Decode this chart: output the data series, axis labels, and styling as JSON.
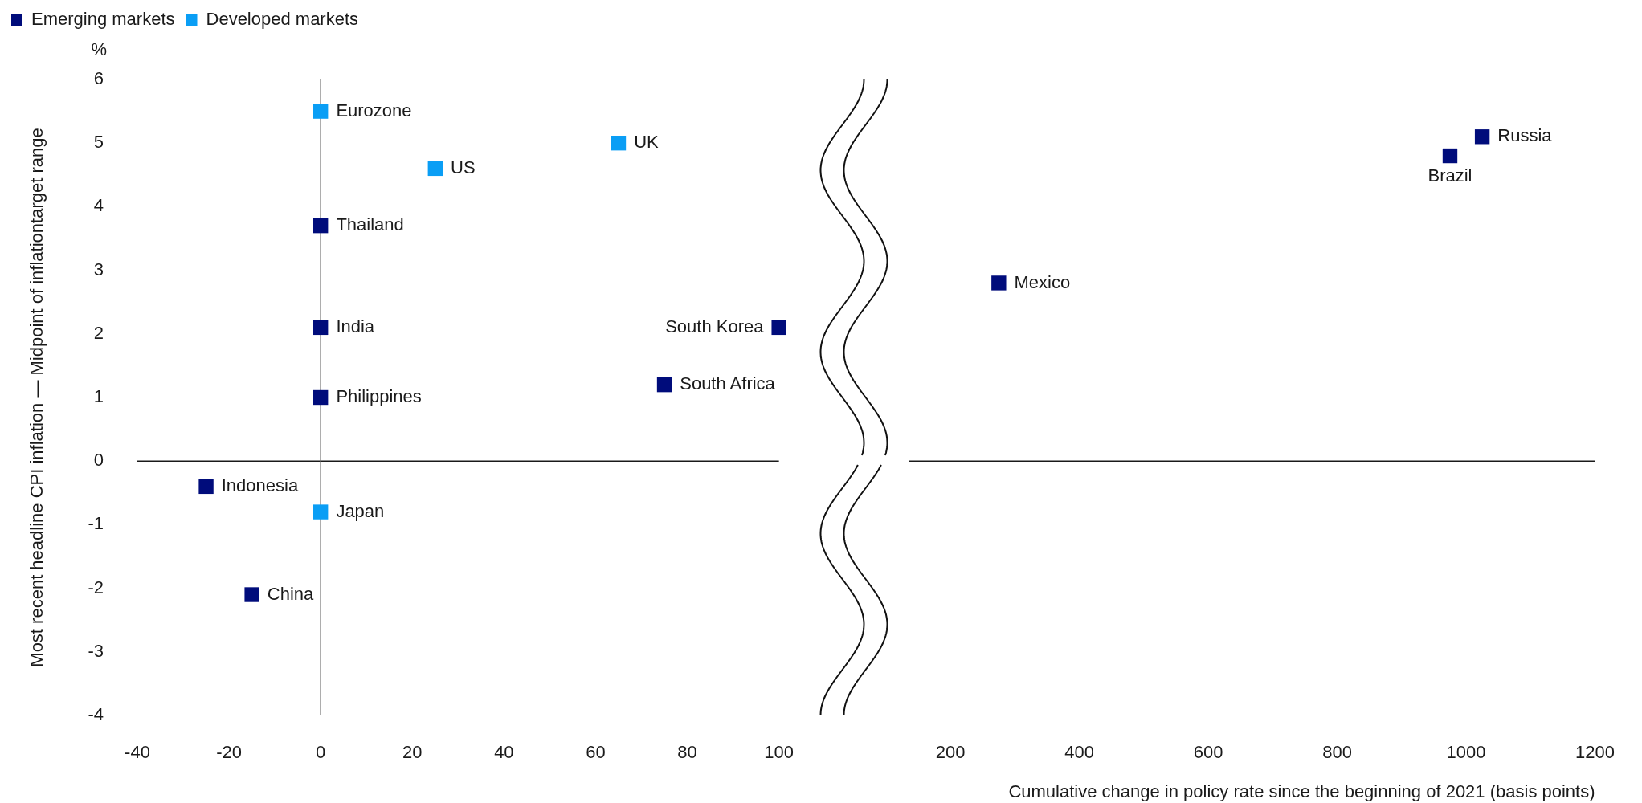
{
  "chart_data": [
    {
      "type": "scatter",
      "ylabel": "Most recent headline CPI inflation — Midpoint of inflationtarget range",
      "legend": "top left",
      "marker": "square",
      "xlim": [
        -40,
        100
      ],
      "xticks": [
        -40,
        -20,
        0,
        20,
        40,
        60,
        80,
        100
      ],
      "ylim": [
        -4,
        6
      ],
      "yticks": [
        -4,
        -3,
        -2,
        -1,
        0,
        1,
        2,
        3,
        4,
        5,
        6
      ],
      "series": [
        {
          "name": "Emerging markets",
          "color": "#000c7b",
          "x": [
            0,
            0,
            0,
            -25,
            -15,
            100,
            75
          ],
          "values": [
            3.7,
            2.1,
            1.0,
            -0.4,
            -2.1,
            2.1,
            1.2
          ]
        },
        {
          "name": "Developed markets",
          "color": "#0a9ef5",
          "x": [
            0,
            25,
            65,
            0
          ],
          "values": [
            5.5,
            4.6,
            5.0,
            -0.8
          ]
        }
      ],
      "ref_lines": [
        {
          "axis": "y",
          "value": 0,
          "color": "#1a1a1a"
        },
        {
          "axis": "x",
          "value": 0,
          "color": "#6e6e6e"
        }
      ],
      "annotations": [
        "%",
        {
          "text": "Eurozone",
          "x": 0,
          "y": 5.5
        },
        {
          "text": "UK",
          "x": 65,
          "y": 5.0
        },
        {
          "text": "US",
          "x": 25,
          "y": 4.6
        },
        {
          "text": "Thailand",
          "x": 0,
          "y": 3.7
        },
        {
          "text": "India",
          "x": 0,
          "y": 2.1
        },
        {
          "text": "South Korea",
          "x": 100,
          "y": 2.1
        },
        {
          "text": "South Africa",
          "x": 75,
          "y": 1.2
        },
        {
          "text": "Philippines",
          "x": 0,
          "y": 1.0
        },
        {
          "text": "Indonesia",
          "x": -25,
          "y": -0.4
        },
        {
          "text": "Japan",
          "x": 0,
          "y": -0.8
        },
        {
          "text": "China",
          "x": -15,
          "y": -2.1
        }
      ]
    },
    {
      "type": "scatter",
      "xlabel": "Cumulative change in policy rate since the beginning of 2021 (basis points)",
      "marker": "square",
      "xlim": [
        135,
        1200
      ],
      "xticks": [
        200,
        400,
        600,
        800,
        1000,
        1200
      ],
      "ylim": [
        -4,
        6
      ],
      "tick_labels": "x",
      "series": [
        {
          "color": "#000c7b",
          "x": [
            275,
            1025,
            975
          ],
          "values": [
            2.8,
            5.1,
            4.8
          ]
        }
      ],
      "ref_lines": [
        {
          "axis": "y",
          "value": 0,
          "color": "#1a1a1a"
        }
      ],
      "annotations": [
        {
          "text": "Mexico",
          "x": 275,
          "y": 2.8
        },
        {
          "text": "Russia",
          "x": 1025,
          "y": 5.1
        },
        {
          "text": "Brazil",
          "x": 975,
          "y": 4.8
        }
      ]
    }
  ]
}
